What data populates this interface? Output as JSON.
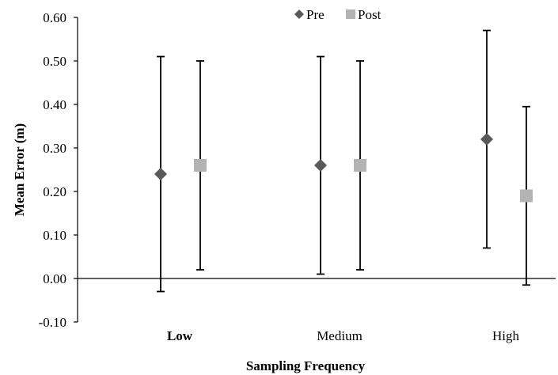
{
  "chart_data": {
    "type": "scatter",
    "title": "",
    "xlabel": "Sampling Frequency",
    "ylabel": "Mean Error (m)",
    "categories": [
      "Low",
      "Medium",
      "High"
    ],
    "category_bold": [
      "Low"
    ],
    "ylim": [
      -0.1,
      0.6
    ],
    "yticks": [
      "-0.10",
      "0.00",
      "0.10",
      "0.20",
      "0.30",
      "0.40",
      "0.50",
      "0.60"
    ],
    "ytick_values": [
      -0.1,
      0.0,
      0.1,
      0.2,
      0.3,
      0.4,
      0.5,
      0.6
    ],
    "grid": false,
    "legend_position": "top-center",
    "series": [
      {
        "name": "Pre",
        "marker": "diamond",
        "color": "#595959",
        "values": [
          0.24,
          0.26,
          0.32
        ],
        "err_low": [
          -0.03,
          0.01,
          0.07
        ],
        "err_high": [
          0.51,
          0.51,
          0.57
        ]
      },
      {
        "name": "Post",
        "marker": "square",
        "color": "#b3b3b3",
        "values": [
          0.26,
          0.26,
          0.19
        ],
        "err_low": [
          0.02,
          0.02,
          -0.015
        ],
        "err_high": [
          0.5,
          0.5,
          0.395
        ]
      }
    ]
  }
}
